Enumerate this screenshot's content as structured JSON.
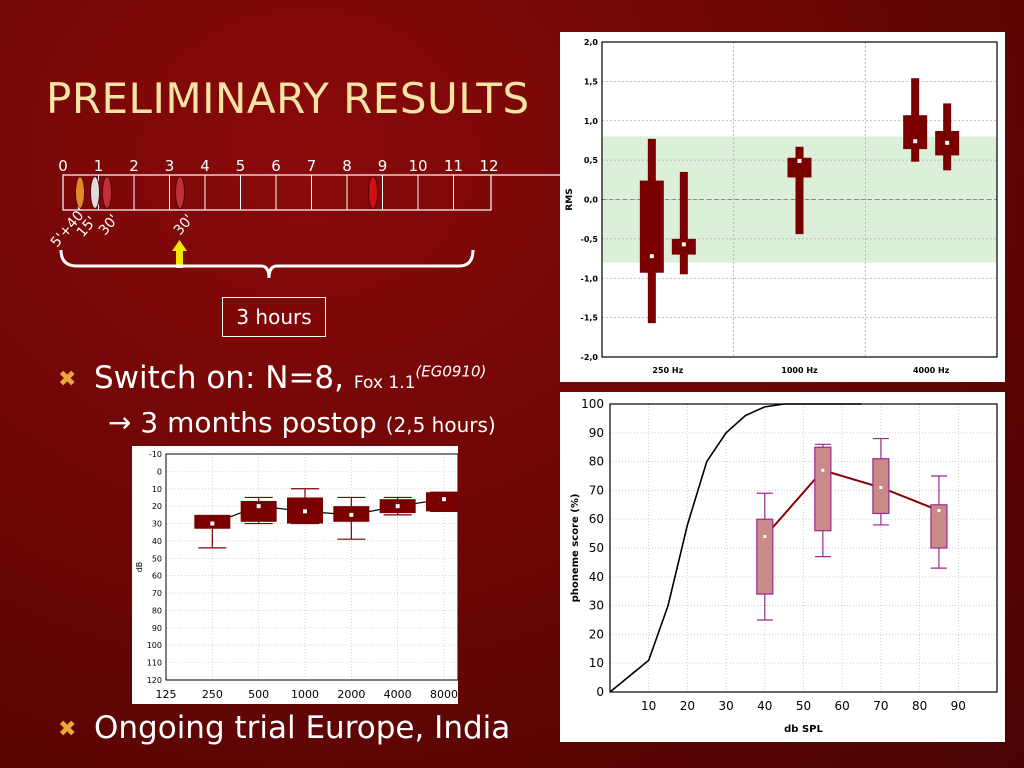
{
  "title": "PRELIMINARY RESULTS",
  "timeline": {
    "ticks": [
      "0",
      "1",
      "2",
      "3",
      "4",
      "5",
      "6",
      "7",
      "8",
      "9",
      "10",
      "11",
      "12"
    ],
    "labels": [
      "5'+40'",
      "15'",
      "30'",
      "30'"
    ],
    "box_label": "3 hours"
  },
  "bullets": {
    "b1_main": "Switch on: N=8, ",
    "b1_small": "Fox 1.1",
    "b1_sup": "(EG0910)",
    "b1_sub_main": "→ 3 months postop ",
    "b1_sub_small": "(2,5 hours)",
    "b2": "Ongoing trial Europe, India"
  },
  "colors": {
    "accent": "#f6e3a6",
    "box_fill": "#7a0000",
    "band": "#dcefd9",
    "bullet": "#e9a63a"
  },
  "chart_data": [
    {
      "type": "box",
      "name": "rms",
      "ylabel": "RMS",
      "ylim": [
        -2.0,
        2.0
      ],
      "yticks": [
        "-2,0",
        "-1,5",
        "-1,0",
        "-0,5",
        "0,0",
        "0,5",
        "1,0",
        "1,5",
        "2,0"
      ],
      "categories": [
        "250 Hz",
        "1000 Hz",
        "4000 Hz"
      ],
      "band": [
        -0.8,
        0.8
      ],
      "boxes": [
        {
          "cat": 0,
          "offset": -1,
          "whisker": [
            -1.57,
            0.77
          ],
          "box": [
            -0.93,
            0.24
          ],
          "median": -0.72
        },
        {
          "cat": 0,
          "offset": 1,
          "whisker": [
            -0.95,
            0.35
          ],
          "box": [
            -0.7,
            -0.5
          ],
          "median": -0.57
        },
        {
          "cat": 1,
          "offset": 0,
          "whisker": [
            -0.44,
            0.67
          ],
          "box": [
            0.28,
            0.53
          ],
          "median": 0.49
        },
        {
          "cat": 2,
          "offset": -1,
          "whisker": [
            0.48,
            1.54
          ],
          "box": [
            0.64,
            1.07
          ],
          "median": 0.74
        },
        {
          "cat": 2,
          "offset": 1,
          "whisker": [
            0.37,
            1.22
          ],
          "box": [
            0.56,
            0.87
          ],
          "median": 0.72
        }
      ]
    },
    {
      "type": "box",
      "name": "audiogram",
      "ylabel": "dB",
      "ylim": [
        -10,
        120
      ],
      "yreversed": true,
      "yticks": [
        "-10",
        "0",
        "10",
        "20",
        "30",
        "40",
        "50",
        "60",
        "70",
        "80",
        "90",
        "100",
        "110",
        "120"
      ],
      "categories": [
        "125",
        "250",
        "500",
        "1000",
        "2000",
        "4000",
        "8000"
      ],
      "boxes": [
        {
          "cat": 1,
          "whisker": [
            28,
            44
          ],
          "box": [
            25,
            33
          ],
          "median": 30
        },
        {
          "cat": 2,
          "whisker": [
            15,
            30
          ],
          "box": [
            17,
            29
          ],
          "median": 20
        },
        {
          "cat": 3,
          "whisker": [
            10,
            30
          ],
          "box": [
            15,
            30
          ],
          "median": 23
        },
        {
          "cat": 4,
          "whisker": [
            15,
            39
          ],
          "box": [
            20,
            29
          ],
          "median": 25
        },
        {
          "cat": 5,
          "whisker": [
            15,
            25
          ],
          "box": [
            16,
            24
          ],
          "median": 20
        },
        {
          "cat": 6,
          "whisker": [
            12,
            23
          ],
          "box": [
            12,
            23
          ],
          "median": 16
        }
      ],
      "line": [
        30,
        20,
        23,
        25,
        20,
        16
      ]
    },
    {
      "type": "box",
      "name": "phoneme",
      "xlabel": "db SPL",
      "ylabel": "phoneme score (%)",
      "xlim": [
        0,
        100
      ],
      "ylim": [
        0,
        100
      ],
      "xticks": [
        10,
        20,
        30,
        40,
        50,
        60,
        70,
        80,
        90
      ],
      "yticks": [
        0,
        10,
        20,
        30,
        40,
        50,
        60,
        70,
        80,
        90,
        100
      ],
      "curve": [
        [
          0,
          0
        ],
        [
          10,
          11
        ],
        [
          15,
          30
        ],
        [
          20,
          58
        ],
        [
          25,
          80
        ],
        [
          30,
          90
        ],
        [
          35,
          96
        ],
        [
          40,
          99
        ],
        [
          45,
          100
        ],
        [
          65,
          100
        ]
      ],
      "boxes": [
        {
          "x": 40,
          "whisker": [
            25,
            69
          ],
          "box": [
            34,
            60
          ],
          "median": 54
        },
        {
          "x": 55,
          "whisker": [
            47,
            86
          ],
          "box": [
            56,
            85
          ],
          "median": 77
        },
        {
          "x": 70,
          "whisker": [
            58,
            88
          ],
          "box": [
            62,
            81
          ],
          "median": 71
        },
        {
          "x": 85,
          "whisker": [
            43,
            75
          ],
          "box": [
            50,
            65
          ],
          "median": 63
        }
      ],
      "line": [
        [
          40,
          54
        ],
        [
          55,
          77
        ],
        [
          70,
          71
        ],
        [
          85,
          63
        ]
      ]
    }
  ]
}
